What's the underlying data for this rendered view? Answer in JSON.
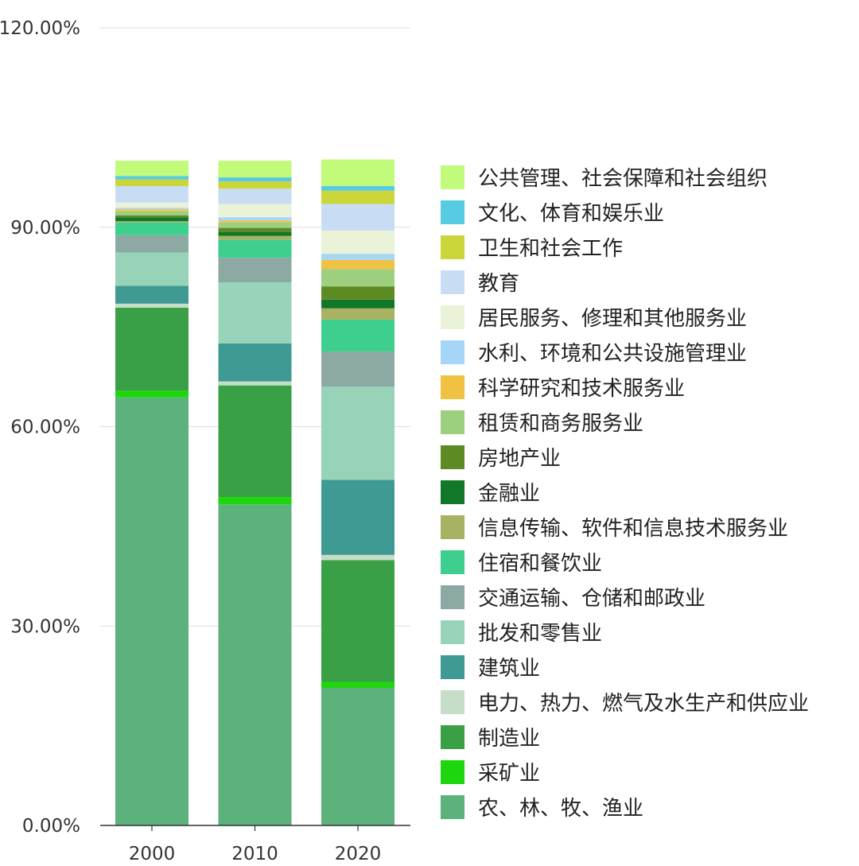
{
  "chart_data": {
    "type": "bar",
    "stacked": true,
    "categories": [
      "2000",
      "2010",
      "2020"
    ],
    "ylim": [
      0,
      120
    ],
    "yticks": [
      0,
      30,
      60,
      90,
      120
    ],
    "ytick_labels": [
      "0.00%",
      "30.00%",
      "60.00%",
      "90.00%",
      "120.00%"
    ],
    "grid": true,
    "legend_position": "right",
    "series": [
      {
        "name": "农、林、牧、渔业",
        "color": "#5bb27a",
        "values": [
          64.4,
          48.3,
          20.7
        ]
      },
      {
        "name": "采矿业",
        "color": "#1ed60e",
        "values": [
          1.0,
          1.1,
          0.9
        ]
      },
      {
        "name": "制造业",
        "color": "#3aa046",
        "values": [
          12.5,
          16.8,
          18.3
        ]
      },
      {
        "name": "电力、热力、燃气及水生产和供应业",
        "color": "#c6ddc7",
        "values": [
          0.6,
          0.6,
          0.8
        ]
      },
      {
        "name": "建筑业",
        "color": "#3e9a93",
        "values": [
          2.7,
          5.7,
          11.3
        ]
      },
      {
        "name": "批发和零售业",
        "color": "#97d3b8",
        "values": [
          5.0,
          9.2,
          14.0
        ]
      },
      {
        "name": "交通运输、仓储和邮政业",
        "color": "#8ca9a3",
        "values": [
          2.6,
          3.7,
          5.3
        ]
      },
      {
        "name": "住宿和餐饮业",
        "color": "#3ecf8e",
        "values": [
          1.9,
          2.7,
          4.8
        ]
      },
      {
        "name": "信息传输、软件和信息技术服务业",
        "color": "#a8b262",
        "values": [
          0.2,
          0.6,
          1.7
        ]
      },
      {
        "name": "金融业",
        "color": "#11782a",
        "values": [
          0.6,
          0.6,
          1.3
        ]
      },
      {
        "name": "房地产业",
        "color": "#5e8a24",
        "values": [
          0.3,
          0.6,
          2.0
        ]
      },
      {
        "name": "租赁和商务服务业",
        "color": "#9ccf7e",
        "values": [
          0.6,
          0.8,
          2.6
        ]
      },
      {
        "name": "科学研究和技术服务业",
        "color": "#efc244",
        "values": [
          0.3,
          0.3,
          1.4
        ]
      },
      {
        "name": "水利、环境和公共设施管理业",
        "color": "#a6d6f7",
        "values": [
          0.2,
          0.5,
          0.9
        ]
      },
      {
        "name": "居民服务、修理和其他服务业",
        "color": "#eaf2d8",
        "values": [
          0.8,
          2.0,
          3.5
        ]
      },
      {
        "name": "教育",
        "color": "#c8ddf4",
        "values": [
          2.5,
          2.3,
          4.0
        ]
      },
      {
        "name": "卫生和社会工作",
        "color": "#cbd63a",
        "values": [
          1.0,
          1.1,
          2.0
        ]
      },
      {
        "name": "文化、体育和娱乐业",
        "color": "#56cbe2",
        "values": [
          0.5,
          0.6,
          0.7
        ]
      },
      {
        "name": "公共管理、社会保障和社会组织",
        "color": "#c2fa7a",
        "values": [
          2.3,
          2.5,
          4.0
        ]
      }
    ]
  }
}
